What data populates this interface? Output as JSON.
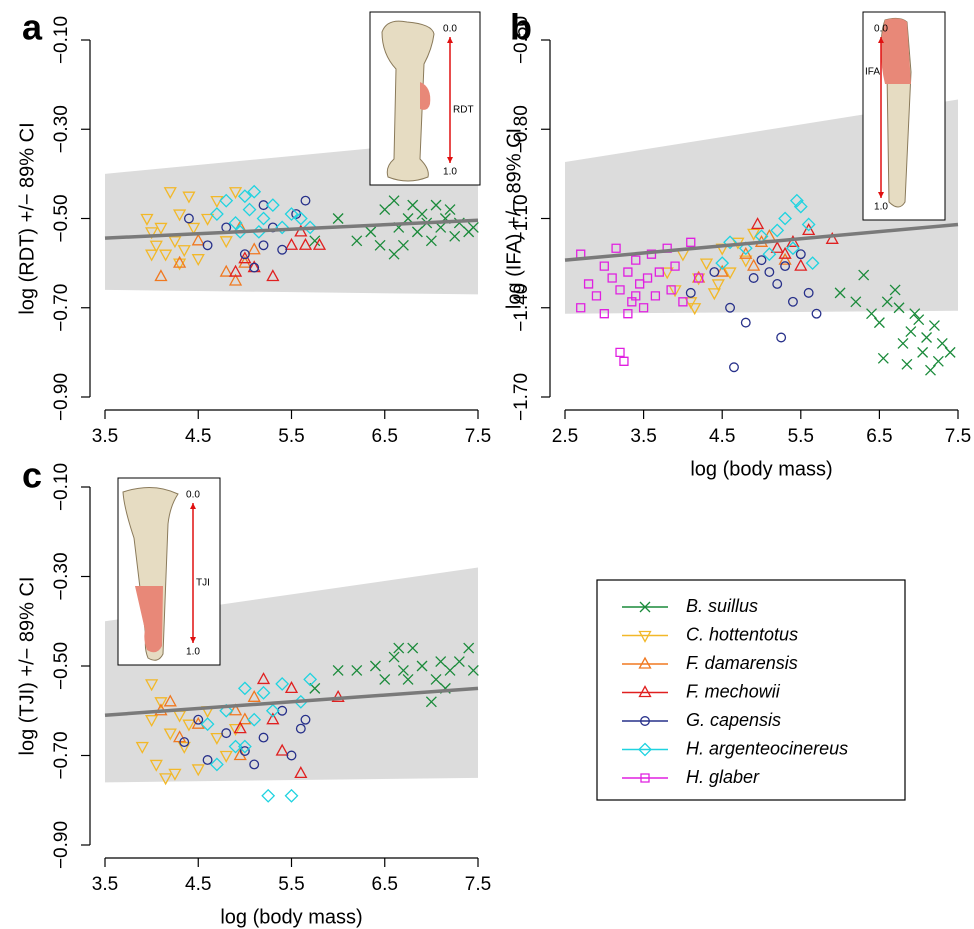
{
  "chart_data": [
    {
      "type": "scatter",
      "title": "a",
      "ylabel": "log (RDT) +/− 89% CI",
      "xlim": [
        3.5,
        7.5
      ],
      "ylim": [
        -0.1,
        -0.9
      ],
      "xticks": [
        3.5,
        4.5,
        5.5,
        6.5,
        7.5
      ],
      "yticks": [
        {
          "value": -0.1,
          "label": "−0.10"
        },
        {
          "value": -0.3,
          "label": "−0.30"
        },
        {
          "value": -0.5,
          "label": "−0.50"
        },
        {
          "value": -0.7,
          "label": "−0.70"
        },
        {
          "value": -0.9,
          "label": "−0.90"
        }
      ],
      "ci_band": {
        "x": [
          3.5,
          7.5
        ],
        "upper": [
          -0.4,
          -0.32
        ],
        "lower": [
          -0.66,
          -0.67
        ]
      },
      "fit_line": {
        "x": [
          3.5,
          7.5
        ],
        "y": [
          -0.544,
          -0.504
        ]
      },
      "inset": {
        "top": "0.0",
        "bottom": "1.0",
        "landmark": "RDT"
      },
      "series": [
        {
          "name": "B. suillus",
          "color": "#1a8a3a",
          "marker": "x",
          "x": [
            5.75,
            6.0,
            6.2,
            6.35,
            6.5,
            6.6,
            6.65,
            6.7,
            6.75,
            6.8,
            6.85,
            6.9,
            6.95,
            7.0,
            7.05,
            7.1,
            7.15,
            7.2,
            7.25,
            7.3,
            7.4,
            6.6,
            6.45,
            7.45
          ],
          "y": [
            -0.55,
            -0.5,
            -0.55,
            -0.53,
            -0.48,
            -0.46,
            -0.52,
            -0.56,
            -0.5,
            -0.47,
            -0.53,
            -0.49,
            -0.51,
            -0.55,
            -0.47,
            -0.52,
            -0.5,
            -0.48,
            -0.54,
            -0.51,
            -0.53,
            -0.58,
            -0.56,
            -0.52
          ]
        },
        {
          "name": "C. hottentotus",
          "color": "#f2b829",
          "marker": "tri-down",
          "x": [
            3.95,
            4.0,
            4.05,
            4.1,
            4.15,
            4.2,
            4.25,
            4.3,
            4.35,
            4.4,
            4.45,
            4.5,
            4.6,
            4.7,
            4.8,
            4.9,
            4.0,
            4.3
          ],
          "y": [
            -0.5,
            -0.53,
            -0.56,
            -0.52,
            -0.58,
            -0.44,
            -0.55,
            -0.49,
            -0.57,
            -0.45,
            -0.52,
            -0.59,
            -0.5,
            -0.46,
            -0.55,
            -0.44,
            -0.58,
            -0.6
          ]
        },
        {
          "name": "F. damarensis",
          "color": "#f07820",
          "marker": "tri-up",
          "x": [
            4.1,
            4.3,
            4.5,
            4.8,
            4.9,
            5.0,
            5.1,
            4.95
          ],
          "y": [
            -0.63,
            -0.6,
            -0.55,
            -0.62,
            -0.64,
            -0.6,
            -0.57,
            -0.52
          ]
        },
        {
          "name": "F. mechowii",
          "color": "#e02020",
          "marker": "tri-up",
          "x": [
            4.9,
            5.0,
            5.1,
            5.3,
            5.5,
            5.6,
            5.8,
            5.65
          ],
          "y": [
            -0.62,
            -0.59,
            -0.61,
            -0.63,
            -0.56,
            -0.53,
            -0.56,
            -0.56
          ]
        },
        {
          "name": "G. capensis",
          "color": "#27308a",
          "marker": "circle",
          "x": [
            4.4,
            4.6,
            4.8,
            5.0,
            5.1,
            5.2,
            5.3,
            5.4,
            5.55,
            5.65,
            5.2
          ],
          "y": [
            -0.5,
            -0.56,
            -0.52,
            -0.58,
            -0.61,
            -0.56,
            -0.52,
            -0.57,
            -0.49,
            -0.46,
            -0.47
          ]
        },
        {
          "name": "H. argenteocinereus",
          "color": "#1fd3e0",
          "marker": "diamond",
          "x": [
            4.7,
            4.8,
            4.9,
            5.0,
            5.05,
            5.1,
            5.2,
            5.3,
            5.4,
            5.5,
            5.6,
            5.7,
            5.15,
            4.95
          ],
          "y": [
            -0.49,
            -0.46,
            -0.51,
            -0.45,
            -0.48,
            -0.44,
            -0.5,
            -0.47,
            -0.52,
            -0.49,
            -0.5,
            -0.52,
            -0.53,
            -0.53
          ]
        }
      ]
    },
    {
      "type": "scatter",
      "title": "b",
      "ylabel": "log (IFA) +/− 89% CI",
      "xlabel": "log (body mass)",
      "xlim": [
        2.5,
        7.5
      ],
      "ylim": [
        -0.5,
        -1.7
      ],
      "xticks": [
        2.5,
        3.5,
        4.5,
        5.5,
        6.5,
        7.5
      ],
      "yticks": [
        {
          "value": -0.5,
          "label": "−0.50"
        },
        {
          "value": -0.8,
          "label": "−0.80"
        },
        {
          "value": -1.1,
          "label": "−1.10"
        },
        {
          "value": -1.4,
          "label": "−1.40"
        },
        {
          "value": -1.7,
          "label": "−1.70"
        }
      ],
      "ci_band": {
        "x": [
          2.5,
          7.5
        ],
        "upper": [
          -0.91,
          -0.7
        ],
        "lower": [
          -1.42,
          -1.41
        ]
      },
      "fit_line": {
        "x": [
          2.5,
          7.5
        ],
        "y": [
          -1.24,
          -1.12
        ]
      },
      "inset": {
        "top": "0.0",
        "bottom": "1.0",
        "landmark": "IFA"
      },
      "series": [
        {
          "name": "B. suillus",
          "color": "#1a8a3a",
          "marker": "x",
          "x": [
            6.0,
            6.2,
            6.3,
            6.4,
            6.5,
            6.6,
            6.7,
            6.75,
            6.8,
            6.9,
            7.0,
            7.05,
            7.1,
            7.2,
            7.25,
            7.3,
            7.4,
            6.55,
            6.85,
            7.15,
            6.95
          ],
          "y": [
            -1.35,
            -1.38,
            -1.29,
            -1.42,
            -1.45,
            -1.38,
            -1.34,
            -1.4,
            -1.52,
            -1.48,
            -1.44,
            -1.55,
            -1.5,
            -1.46,
            -1.58,
            -1.52,
            -1.55,
            -1.57,
            -1.59,
            -1.61,
            -1.42
          ]
        },
        {
          "name": "C. hottentotus",
          "color": "#f2b829",
          "marker": "tri-down",
          "x": [
            3.8,
            3.9,
            4.0,
            4.1,
            4.2,
            4.3,
            4.4,
            4.5,
            4.6,
            4.7,
            4.8,
            4.9,
            4.15,
            4.45
          ],
          "y": [
            -1.28,
            -1.34,
            -1.22,
            -1.38,
            -1.3,
            -1.25,
            -1.35,
            -1.2,
            -1.28,
            -1.18,
            -1.24,
            -1.15,
            -1.4,
            -1.32
          ]
        },
        {
          "name": "F. damarensis",
          "color": "#f07820",
          "marker": "tri-up",
          "x": [
            4.2,
            4.5,
            4.8,
            5.0,
            5.1,
            5.3,
            4.9
          ],
          "y": [
            -1.3,
            -1.28,
            -1.22,
            -1.18,
            -1.16,
            -1.24,
            -1.26
          ]
        },
        {
          "name": "F. mechowii",
          "color": "#e02020",
          "marker": "tri-up",
          "x": [
            4.95,
            5.2,
            5.4,
            5.6,
            5.9,
            5.5,
            5.3
          ],
          "y": [
            -1.12,
            -1.2,
            -1.18,
            -1.14,
            -1.17,
            -1.26,
            -1.22
          ]
        },
        {
          "name": "G. capensis",
          "color": "#27308a",
          "marker": "circle",
          "x": [
            4.1,
            4.4,
            4.6,
            4.65,
            4.8,
            4.9,
            5.0,
            5.1,
            5.2,
            5.25,
            5.4,
            5.5,
            5.6,
            5.7,
            5.3
          ],
          "y": [
            -1.35,
            -1.28,
            -1.4,
            -1.6,
            -1.45,
            -1.3,
            -1.24,
            -1.28,
            -1.32,
            -1.5,
            -1.38,
            -1.22,
            -1.35,
            -1.42,
            -1.26
          ]
        },
        {
          "name": "H. argenteocinereus",
          "color": "#1fd3e0",
          "marker": "diamond",
          "x": [
            4.5,
            4.6,
            4.8,
            5.0,
            5.1,
            5.2,
            5.3,
            5.4,
            5.45,
            5.5,
            5.6,
            5.65
          ],
          "y": [
            -1.25,
            -1.18,
            -1.2,
            -1.16,
            -1.22,
            -1.14,
            -1.1,
            -1.2,
            -1.04,
            -1.06,
            -1.12,
            -1.25
          ]
        },
        {
          "name": "H. glaber",
          "color": "#e020e0",
          "marker": "square",
          "x": [
            2.7,
            2.7,
            2.8,
            2.9,
            3.0,
            3.0,
            3.1,
            3.15,
            3.2,
            3.2,
            3.25,
            3.3,
            3.35,
            3.4,
            3.45,
            3.5,
            3.55,
            3.6,
            3.65,
            3.7,
            3.8,
            3.85,
            3.9,
            4.0,
            4.1,
            4.2,
            3.4,
            3.3
          ],
          "y": [
            -1.4,
            -1.22,
            -1.32,
            -1.36,
            -1.26,
            -1.42,
            -1.3,
            -1.2,
            -1.34,
            -1.55,
            -1.58,
            -1.28,
            -1.38,
            -1.24,
            -1.32,
            -1.4,
            -1.3,
            -1.22,
            -1.36,
            -1.28,
            -1.2,
            -1.34,
            -1.26,
            -1.38,
            -1.18,
            -1.3,
            -1.36,
            -1.42
          ]
        }
      ]
    },
    {
      "type": "scatter",
      "title": "c",
      "ylabel": "log (TJI) +/− 89% CI",
      "xlabel": "log (body mass)",
      "xlim": [
        3.5,
        7.5
      ],
      "ylim": [
        -0.1,
        -0.9
      ],
      "xticks": [
        3.5,
        4.5,
        5.5,
        6.5,
        7.5
      ],
      "yticks": [
        {
          "value": -0.1,
          "label": "−0.10"
        },
        {
          "value": -0.3,
          "label": "−0.30"
        },
        {
          "value": -0.5,
          "label": "−0.50"
        },
        {
          "value": -0.7,
          "label": "−0.70"
        },
        {
          "value": -0.9,
          "label": "−0.90"
        }
      ],
      "ci_band": {
        "x": [
          3.5,
          7.5
        ],
        "upper": [
          -0.4,
          -0.28
        ],
        "lower": [
          -0.76,
          -0.75
        ]
      },
      "fit_line": {
        "x": [
          3.5,
          7.5
        ],
        "y": [
          -0.61,
          -0.55
        ]
      },
      "inset": {
        "top": "0.0",
        "bottom": "1.0",
        "landmark": "TJI"
      },
      "series": [
        {
          "name": "B. suillus",
          "color": "#1a8a3a",
          "marker": "x",
          "x": [
            5.75,
            6.0,
            6.2,
            6.4,
            6.5,
            6.6,
            6.65,
            6.7,
            6.8,
            6.9,
            7.0,
            7.05,
            7.1,
            7.2,
            7.3,
            7.4,
            6.75,
            7.15,
            7.45
          ],
          "y": [
            -0.55,
            -0.51,
            -0.51,
            -0.5,
            -0.53,
            -0.48,
            -0.46,
            -0.51,
            -0.46,
            -0.5,
            -0.58,
            -0.53,
            -0.49,
            -0.51,
            -0.49,
            -0.46,
            -0.53,
            -0.55,
            -0.51
          ]
        },
        {
          "name": "C. hottentotus",
          "color": "#f2b829",
          "marker": "tri-down",
          "x": [
            3.9,
            4.0,
            4.05,
            4.1,
            4.15,
            4.2,
            4.3,
            4.35,
            4.4,
            4.5,
            4.6,
            4.7,
            4.8,
            4.9,
            4.0,
            4.25
          ],
          "y": [
            -0.68,
            -0.62,
            -0.72,
            -0.58,
            -0.75,
            -0.65,
            -0.61,
            -0.68,
            -0.63,
            -0.73,
            -0.6,
            -0.66,
            -0.7,
            -0.64,
            -0.54,
            -0.74
          ]
        },
        {
          "name": "F. damarensis",
          "color": "#f07820",
          "marker": "tri-up",
          "x": [
            4.1,
            4.2,
            4.3,
            4.5,
            4.9,
            5.0,
            5.1,
            4.95
          ],
          "y": [
            -0.6,
            -0.58,
            -0.66,
            -0.63,
            -0.6,
            -0.62,
            -0.57,
            -0.7
          ]
        },
        {
          "name": "F. mechowii",
          "color": "#e02020",
          "marker": "tri-up",
          "x": [
            4.95,
            5.2,
            5.4,
            5.5,
            5.6,
            6.0,
            5.3
          ],
          "y": [
            -0.64,
            -0.53,
            -0.69,
            -0.55,
            -0.74,
            -0.57,
            -0.62
          ]
        },
        {
          "name": "G. capensis",
          "color": "#27308a",
          "marker": "circle",
          "x": [
            4.35,
            4.5,
            4.6,
            4.8,
            5.0,
            5.1,
            5.2,
            5.4,
            5.6,
            5.65,
            5.5
          ],
          "y": [
            -0.67,
            -0.62,
            -0.71,
            -0.65,
            -0.69,
            -0.72,
            -0.66,
            -0.6,
            -0.64,
            -0.62,
            -0.7
          ]
        },
        {
          "name": "H. argenteocinereus",
          "color": "#1fd3e0",
          "marker": "diamond",
          "x": [
            4.6,
            4.7,
            4.8,
            4.9,
            5.0,
            5.1,
            5.2,
            5.25,
            5.3,
            5.4,
            5.5,
            5.6,
            5.7,
            5.0
          ],
          "y": [
            -0.63,
            -0.72,
            -0.6,
            -0.68,
            -0.55,
            -0.62,
            -0.56,
            -0.79,
            -0.6,
            -0.54,
            -0.79,
            -0.58,
            -0.53,
            -0.68
          ]
        }
      ]
    }
  ]
}
